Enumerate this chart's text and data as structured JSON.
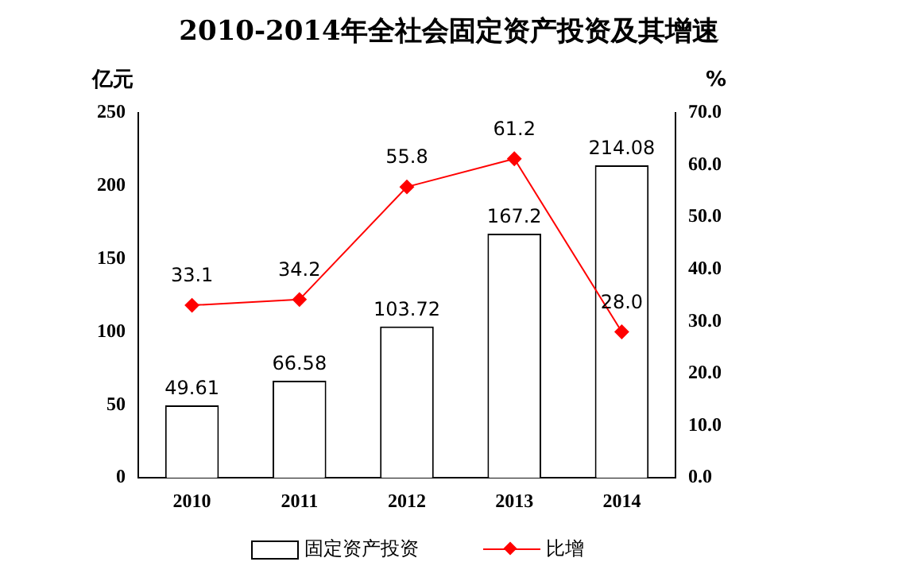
{
  "chart_data": {
    "type": "bar",
    "title": "2010-2014年全社会固定资产投资及其增速",
    "ylabel": "亿元",
    "y2label": "%",
    "categories": [
      "2010",
      "2011",
      "2012",
      "2013",
      "2014"
    ],
    "series": [
      {
        "name": "固定资产投资",
        "color": "#ffffff",
        "values": [
          49.61,
          66.58,
          103.72,
          167.2,
          214.08
        ],
        "value_labels": [
          "49.61",
          "66.58",
          "103.72",
          "167.2",
          "214.08"
        ]
      },
      {
        "name": "比增",
        "type": "line",
        "axis": "y2",
        "color": "#ff0000",
        "values": [
          33.1,
          34.2,
          55.8,
          61.2,
          28.0
        ],
        "value_labels": [
          "33.1",
          "34.2",
          "55.8",
          "61.2",
          "28.0"
        ]
      }
    ],
    "ylim": [
      0,
      250
    ],
    "yticks": [
      0,
      50,
      100,
      150,
      200,
      250
    ],
    "y2lim": [
      0,
      70
    ],
    "y2ticks": [
      {
        "value": 0,
        "label": "0.0"
      },
      {
        "value": 10,
        "label": "10.0"
      },
      {
        "value": 20,
        "label": "20.0"
      },
      {
        "value": 30,
        "label": "30.0"
      },
      {
        "value": 40,
        "label": "40.0"
      },
      {
        "value": 50,
        "label": "50.0"
      },
      {
        "value": 60,
        "label": "60.0"
      },
      {
        "value": 70,
        "label": "70.0"
      }
    ],
    "grid": false,
    "legend": "bottom",
    "marker": "diamond",
    "line_style": "solid"
  }
}
